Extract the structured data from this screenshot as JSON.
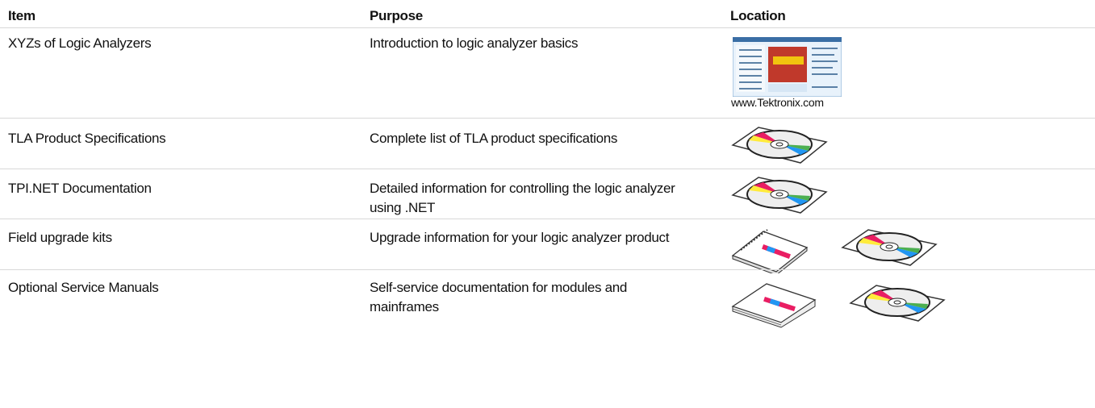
{
  "table": {
    "header": [
      "Item",
      "Purpose",
      "Location"
    ],
    "rows": [
      {
        "item": "XYZs of Logic Analyzers",
        "purpose": "Introduction to logic analyzer basics",
        "location": "www.Tektronix.com"
      },
      {
        "item": "TLA Product Specifications",
        "purpose": "Complete list of TLA product specifications"
      },
      {
        "item": "TPI.NET Documentation",
        "purpose": "Detailed information for controlling the logic analyzer using .NET"
      },
      {
        "item": "Field upgrade kits",
        "purpose": "Upgrade information for your logic analyzer product"
      },
      {
        "item": "Optional Service Manuals",
        "purpose": "Self-service documentation for modules and mainframes"
      }
    ]
  }
}
